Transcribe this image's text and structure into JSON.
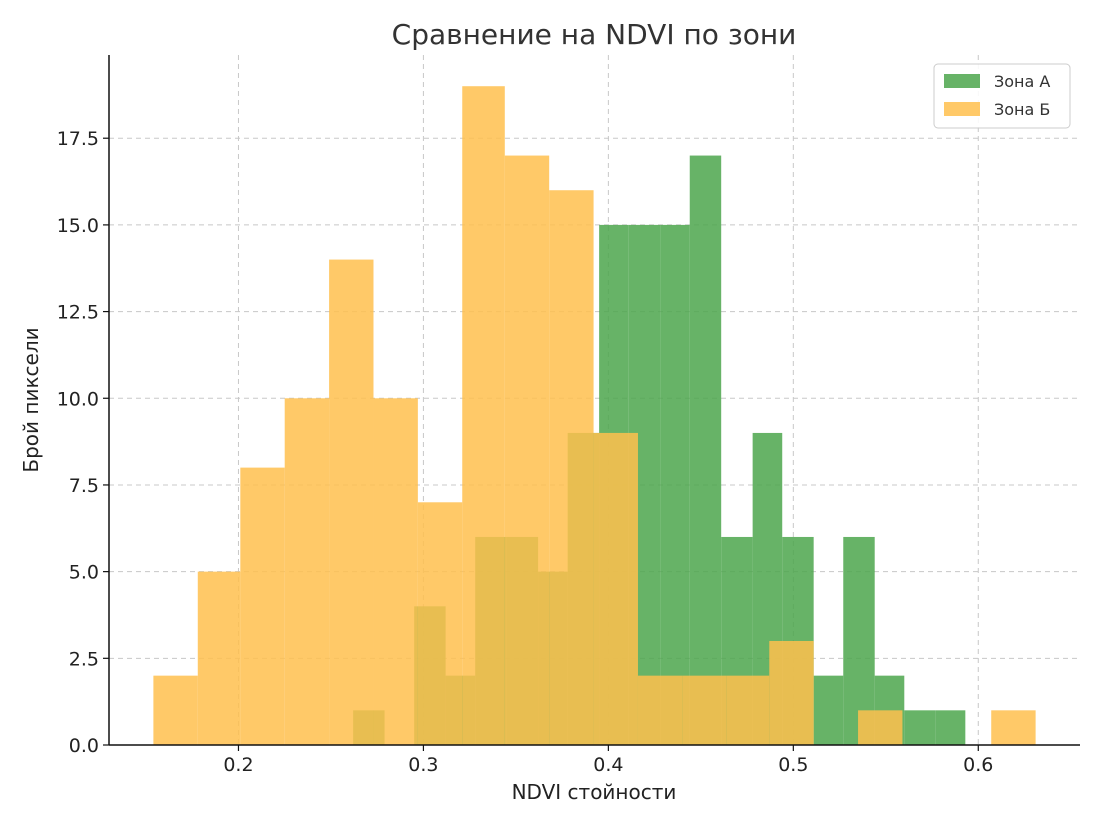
{
  "chart_data": {
    "type": "histogram",
    "title": "Сравнение на NDVI по зони",
    "xlabel": "NDVI стойности",
    "ylabel": "Брой пиксели",
    "xlim": [
      0.13,
      0.655
    ],
    "ylim": [
      0,
      19.9
    ],
    "xticks": [
      0.2,
      0.3,
      0.4,
      0.5,
      0.6
    ],
    "xtick_labels": [
      "0.2",
      "0.3",
      "0.4",
      "0.5",
      "0.6"
    ],
    "yticks": [
      0,
      2.5,
      5,
      7.5,
      10,
      12.5,
      15,
      17.5
    ],
    "ytick_labels": [
      "0.0",
      "2.5",
      "5.0",
      "7.5",
      "10.0",
      "12.5",
      "15.0",
      "17.5"
    ],
    "grid": true,
    "legend_position": "top-right",
    "series": [
      {
        "name": "Зона А",
        "color": "#4ca64c",
        "opacity": 0.85,
        "bins": [
          {
            "x0": 0.262,
            "x1": 0.279,
            "count": 1
          },
          {
            "x0": 0.279,
            "x1": 0.295,
            "count": 0
          },
          {
            "x0": 0.295,
            "x1": 0.312,
            "count": 4
          },
          {
            "x0": 0.312,
            "x1": 0.328,
            "count": 2
          },
          {
            "x0": 0.328,
            "x1": 0.345,
            "count": 6
          },
          {
            "x0": 0.345,
            "x1": 0.362,
            "count": 6
          },
          {
            "x0": 0.362,
            "x1": 0.378,
            "count": 5
          },
          {
            "x0": 0.378,
            "x1": 0.395,
            "count": 9
          },
          {
            "x0": 0.395,
            "x1": 0.411,
            "count": 15
          },
          {
            "x0": 0.411,
            "x1": 0.428,
            "count": 15
          },
          {
            "x0": 0.428,
            "x1": 0.444,
            "count": 15
          },
          {
            "x0": 0.444,
            "x1": 0.461,
            "count": 17
          },
          {
            "x0": 0.461,
            "x1": 0.478,
            "count": 6
          },
          {
            "x0": 0.478,
            "x1": 0.494,
            "count": 9
          },
          {
            "x0": 0.494,
            "x1": 0.511,
            "count": 6
          },
          {
            "x0": 0.511,
            "x1": 0.527,
            "count": 2
          },
          {
            "x0": 0.527,
            "x1": 0.544,
            "count": 6
          },
          {
            "x0": 0.544,
            "x1": 0.56,
            "count": 2
          },
          {
            "x0": 0.56,
            "x1": 0.577,
            "count": 1
          },
          {
            "x0": 0.577,
            "x1": 0.593,
            "count": 1
          }
        ]
      },
      {
        "name": "Зона Б",
        "color": "#ffc04d",
        "opacity": 0.85,
        "bins": [
          {
            "x0": 0.154,
            "x1": 0.178,
            "count": 2
          },
          {
            "x0": 0.178,
            "x1": 0.201,
            "count": 5
          },
          {
            "x0": 0.201,
            "x1": 0.225,
            "count": 8
          },
          {
            "x0": 0.225,
            "x1": 0.249,
            "count": 10
          },
          {
            "x0": 0.249,
            "x1": 0.273,
            "count": 14
          },
          {
            "x0": 0.273,
            "x1": 0.297,
            "count": 10
          },
          {
            "x0": 0.297,
            "x1": 0.321,
            "count": 7
          },
          {
            "x0": 0.321,
            "x1": 0.344,
            "count": 19
          },
          {
            "x0": 0.344,
            "x1": 0.368,
            "count": 17
          },
          {
            "x0": 0.368,
            "x1": 0.392,
            "count": 16
          },
          {
            "x0": 0.392,
            "x1": 0.416,
            "count": 9
          },
          {
            "x0": 0.416,
            "x1": 0.44,
            "count": 2
          },
          {
            "x0": 0.44,
            "x1": 0.464,
            "count": 2
          },
          {
            "x0": 0.464,
            "x1": 0.487,
            "count": 2
          },
          {
            "x0": 0.487,
            "x1": 0.511,
            "count": 3
          },
          {
            "x0": 0.511,
            "x1": 0.535,
            "count": 0
          },
          {
            "x0": 0.535,
            "x1": 0.559,
            "count": 1
          },
          {
            "x0": 0.559,
            "x1": 0.583,
            "count": 0
          },
          {
            "x0": 0.583,
            "x1": 0.607,
            "count": 0
          },
          {
            "x0": 0.607,
            "x1": 0.631,
            "count": 1
          }
        ]
      }
    ]
  }
}
